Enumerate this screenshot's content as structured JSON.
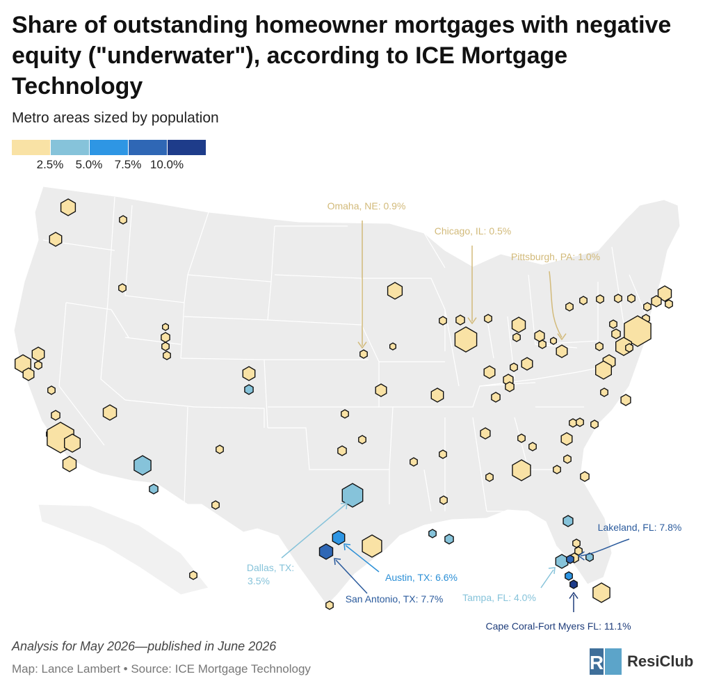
{
  "header": {
    "title": "Share of outstanding homeowner mortgages with negative equity (\"underwater\"), according to ICE Mortgage Technology",
    "subtitle": "Metro areas sized by population"
  },
  "legend": {
    "colors": [
      "#f9e2a5",
      "#86c3da",
      "#2e96e4",
      "#2f67b5",
      "#1e3c8a"
    ],
    "labels": [
      "2.5%",
      "5.0%",
      "7.5%",
      "10.0%"
    ]
  },
  "map_data": {
    "annotations": [
      {
        "id": "omaha",
        "text": "Omaha, NE: 0.9%",
        "color": "#d2ba7a"
      },
      {
        "id": "chicago",
        "text": "Chicago, IL: 0.5%",
        "color": "#d2ba7a"
      },
      {
        "id": "pittsburgh",
        "text": "Pittsburgh, PA: 1.0%",
        "color": "#d2ba7a"
      },
      {
        "id": "dallas",
        "text": [
          "Dallas, TX:",
          "3.5%"
        ],
        "color": "#86c3da"
      },
      {
        "id": "austin",
        "text": "Austin, TX: 6.6%",
        "color": "#2b8fd6"
      },
      {
        "id": "san_antonio",
        "text": "San Antonio, TX: 7.7%",
        "color": "#2a5a9c"
      },
      {
        "id": "lakeland",
        "text": "Lakeland, FL: 7.8%",
        "color": "#2a5a9c"
      },
      {
        "id": "tampa",
        "text": "Tampa, FL: 4.0%",
        "color": "#86c3da"
      },
      {
        "id": "cape_coral",
        "text": "Cape Coral-Fort Myers FL: 11.1%",
        "color": "#1e3c7a"
      }
    ]
  },
  "footer": {
    "note": "Analysis for May 2026—published in June 2026",
    "credit": "Map: Lance Lambert • Source: ICE Mortgage Technology",
    "logo_text": "ResiClub",
    "logo_mark": "RC"
  }
}
